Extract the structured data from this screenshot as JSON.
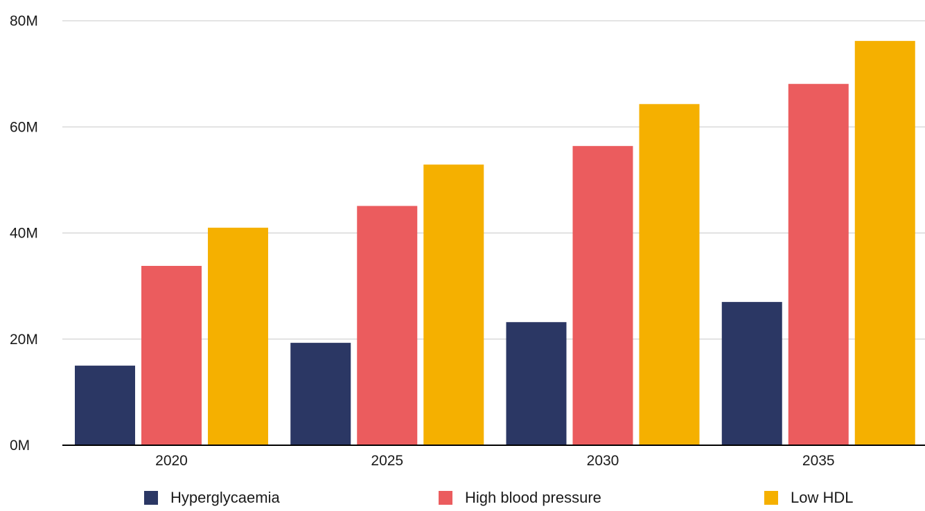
{
  "chart_data": {
    "type": "bar",
    "categories": [
      "2020",
      "2025",
      "2030",
      "2035"
    ],
    "series": [
      {
        "name": "Hyperglycaemia",
        "color": "#2b3764",
        "values": [
          15.0,
          19.3,
          23.2,
          27.0
        ]
      },
      {
        "name": "High blood pressure",
        "color": "#eb5c5e",
        "values": [
          33.8,
          45.1,
          56.4,
          68.1
        ]
      },
      {
        "name": "Low HDL",
        "color": "#f5b000",
        "values": [
          41.0,
          52.9,
          64.3,
          76.2
        ]
      }
    ],
    "y_ticks": [
      "0M",
      "20M",
      "40M",
      "60M",
      "80M"
    ],
    "ylim": [
      0,
      80
    ],
    "grid": true,
    "legend_position": "bottom"
  }
}
